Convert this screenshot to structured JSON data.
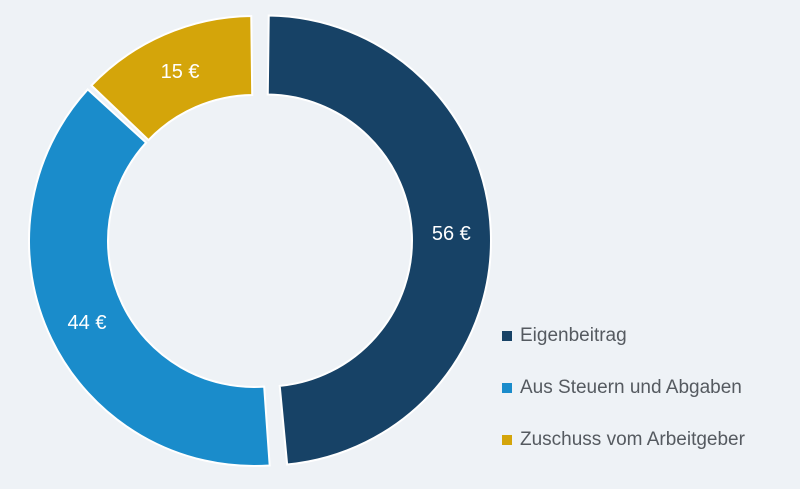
{
  "chart_data": {
    "type": "pie",
    "style": "donut",
    "title": "",
    "categories": [
      "Eigenbeitrag",
      "Aus Steuern und Abgaben",
      "Zuschuss vom Arbeitgeber"
    ],
    "values": [
      56,
      44,
      15
    ],
    "value_labels": [
      "56 €",
      "44 €",
      "15 €"
    ],
    "colors": [
      "#174266",
      "#1a8ccb",
      "#d4a50a"
    ],
    "unit": "€",
    "legend_position": "bottom-right",
    "exploded_slice": "Eigenbeitrag"
  }
}
